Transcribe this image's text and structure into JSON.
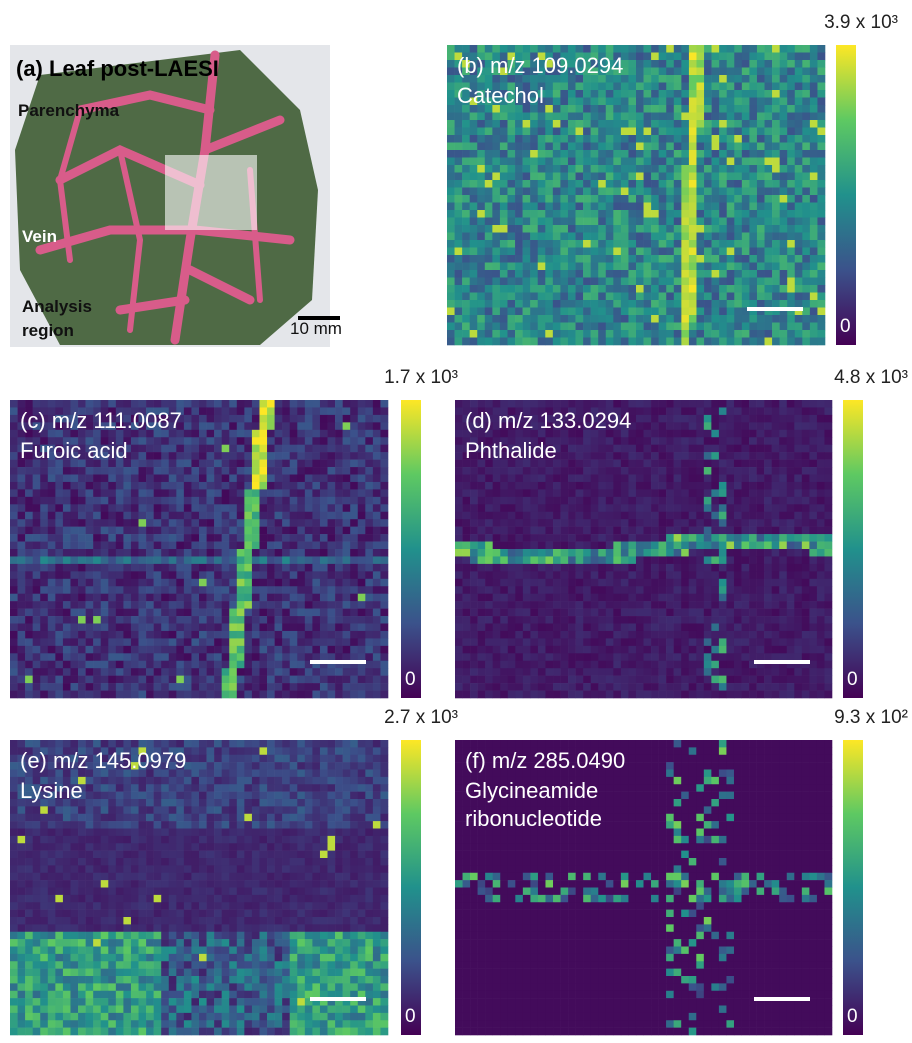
{
  "panels": [
    {
      "label": "(a) Leaf post-LAESI",
      "annotations": [
        "Parenchyma",
        "Vein"
      ],
      "region_lines": [
        "Analysis",
        "region"
      ],
      "scale_bar": "10 mm"
    },
    {
      "label": "(b) m/z 109.0294",
      "compound_lines": [
        "Catechol"
      ],
      "colorbar_max": "3.9 x 10³",
      "colorbar_min": "0"
    },
    {
      "label": "(c) m/z 111.0087",
      "compound_lines": [
        "Furoic acid"
      ],
      "colorbar_max": "1.7 x 10³",
      "colorbar_min": "0"
    },
    {
      "label": "(d) m/z 133.0294",
      "compound_lines": [
        "Phthalide"
      ],
      "colorbar_max": "4.8 x 10³",
      "colorbar_min": "0"
    },
    {
      "label": "(e) m/z 145.0979",
      "compound_lines": [
        "Lysine"
      ],
      "colorbar_max": "2.7 x 10³",
      "colorbar_min": "0"
    },
    {
      "label": "(f) m/z 285.0490",
      "compound_lines": [
        "Glycineamide",
        "ribonucleotide"
      ],
      "colorbar_max": "9.3 x 10²",
      "colorbar_min": "0"
    }
  ]
}
